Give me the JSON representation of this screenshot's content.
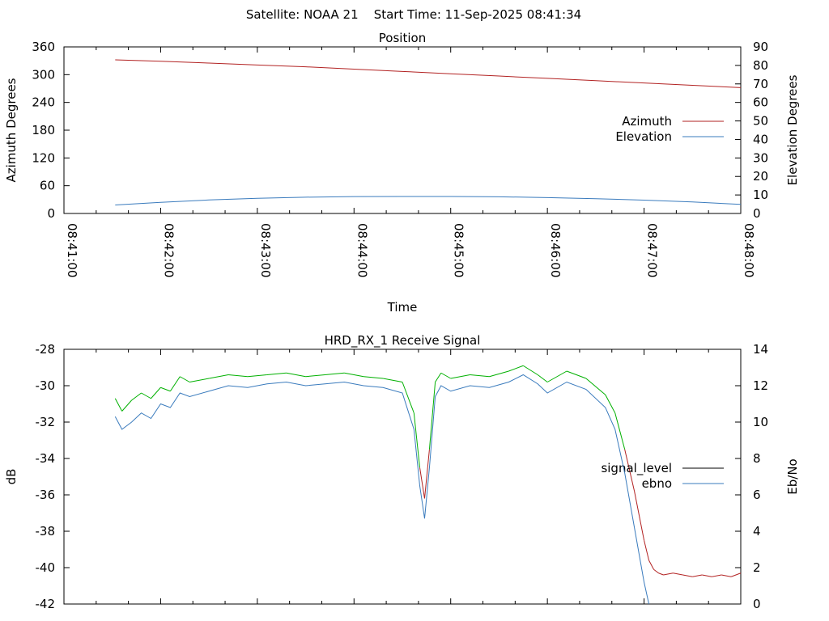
{
  "figure_title": "Satellite: NOAA 21    Start Time: 11-Sep-2025 08:41:34",
  "chart_data": [
    {
      "type": "line",
      "title": "Position",
      "xlabel": "Time",
      "ylabel": "Azimuth Degrees",
      "y2label": "Elevation Degrees",
      "x_unit": "minutes after 08:41:00",
      "xlim": [
        0,
        7
      ],
      "ylim": [
        0,
        360
      ],
      "y2lim": [
        0,
        90
      ],
      "x_ticks": [
        0,
        1,
        2,
        3,
        4,
        5,
        6,
        7
      ],
      "x_tick_labels": [
        "08:41:00",
        "08:42:00",
        "08:43:00",
        "08:44:00",
        "08:45:00",
        "08:46:00",
        "08:47:00",
        "08:48:00"
      ],
      "y_ticks": [
        0,
        60,
        120,
        180,
        240,
        300,
        360
      ],
      "y2_ticks": [
        0,
        10,
        20,
        30,
        40,
        50,
        60,
        70,
        80,
        90
      ],
      "legend_position": "right",
      "series": [
        {
          "name": "Azimuth",
          "axis": "y",
          "color": "#b22222",
          "x": [
            0.53,
            1.0,
            1.5,
            2.0,
            2.5,
            3.0,
            3.5,
            4.0,
            4.5,
            5.0,
            5.5,
            6.0,
            6.5,
            7.0
          ],
          "y": [
            332,
            329,
            325,
            321,
            317,
            312,
            307,
            302,
            297,
            292,
            287,
            282,
            277,
            272
          ]
        },
        {
          "name": "Elevation",
          "axis": "y2",
          "color": "#3a7bbd",
          "x": [
            0.53,
            1.0,
            1.5,
            2.0,
            2.5,
            3.0,
            3.5,
            4.0,
            4.5,
            5.0,
            5.5,
            6.0,
            6.5,
            7.0
          ],
          "y": [
            4.6,
            6.0,
            7.3,
            8.2,
            8.8,
            9.1,
            9.2,
            9.2,
            9.0,
            8.6,
            8.0,
            7.2,
            6.2,
            4.9
          ]
        }
      ]
    },
    {
      "type": "line",
      "title": "HRD_RX_1 Receive Signal",
      "ylabel": "dB",
      "y2label": "Eb/No",
      "x_unit": "minutes after 08:41:00",
      "xlim": [
        0,
        7
      ],
      "ylim": [
        -42,
        -28
      ],
      "y2lim": [
        0,
        14
      ],
      "x_ticks": [
        0,
        1,
        2,
        3,
        4,
        5,
        6,
        7
      ],
      "y_ticks": [
        -42,
        -40,
        -38,
        -36,
        -34,
        -32,
        -30,
        -28
      ],
      "y2_ticks": [
        0,
        2,
        4,
        6,
        8,
        10,
        12,
        14
      ],
      "legend_position": "right",
      "series": [
        {
          "name": "signal_level",
          "axis": "y",
          "color": "#000000",
          "segment_colors": {
            "above": "#00b000",
            "below": "#b22222",
            "threshold": -33.5
          },
          "x": [
            0.53,
            0.6,
            0.7,
            0.8,
            0.9,
            1.0,
            1.1,
            1.2,
            1.3,
            1.5,
            1.7,
            1.9,
            2.1,
            2.3,
            2.5,
            2.7,
            2.9,
            3.1,
            3.3,
            3.5,
            3.62,
            3.68,
            3.73,
            3.78,
            3.84,
            3.9,
            4.0,
            4.2,
            4.4,
            4.6,
            4.75,
            4.9,
            5.0,
            5.2,
            5.4,
            5.6,
            5.7,
            5.8,
            5.9,
            6.0,
            6.05,
            6.1,
            6.15,
            6.2,
            6.3,
            6.4,
            6.5,
            6.6,
            6.7,
            6.8,
            6.9,
            7.0
          ],
          "y": [
            -30.7,
            -31.4,
            -30.8,
            -30.4,
            -30.7,
            -30.1,
            -30.3,
            -29.5,
            -29.8,
            -29.6,
            -29.4,
            -29.5,
            -29.4,
            -29.3,
            -29.5,
            -29.4,
            -29.3,
            -29.5,
            -29.6,
            -29.8,
            -31.5,
            -34.5,
            -36.2,
            -33.5,
            -29.8,
            -29.3,
            -29.6,
            -29.4,
            -29.5,
            -29.2,
            -28.9,
            -29.4,
            -29.8,
            -29.2,
            -29.6,
            -30.5,
            -31.5,
            -33.5,
            -35.8,
            -38.5,
            -39.6,
            -40.1,
            -40.3,
            -40.4,
            -40.3,
            -40.4,
            -40.5,
            -40.4,
            -40.5,
            -40.4,
            -40.5,
            -40.3
          ]
        },
        {
          "name": "ebno",
          "axis": "y2",
          "color": "#3a7bbd",
          "x": [
            0.53,
            0.6,
            0.7,
            0.8,
            0.9,
            1.0,
            1.1,
            1.2,
            1.3,
            1.5,
            1.7,
            1.9,
            2.1,
            2.3,
            2.5,
            2.7,
            2.9,
            3.1,
            3.3,
            3.5,
            3.62,
            3.68,
            3.73,
            3.78,
            3.84,
            3.9,
            4.0,
            4.2,
            4.4,
            4.6,
            4.75,
            4.9,
            5.0,
            5.2,
            5.4,
            5.6,
            5.7,
            5.8,
            5.9,
            6.0,
            6.05
          ],
          "y": [
            10.3,
            9.6,
            10.0,
            10.5,
            10.2,
            11.0,
            10.8,
            11.6,
            11.4,
            11.7,
            12.0,
            11.9,
            12.1,
            12.2,
            12.0,
            12.1,
            12.2,
            12.0,
            11.9,
            11.6,
            9.6,
            6.5,
            4.7,
            7.5,
            11.4,
            12.0,
            11.7,
            12.0,
            11.9,
            12.2,
            12.6,
            12.1,
            11.6,
            12.2,
            11.8,
            10.8,
            9.6,
            7.2,
            4.2,
            1.2,
            0.0
          ]
        }
      ]
    }
  ]
}
